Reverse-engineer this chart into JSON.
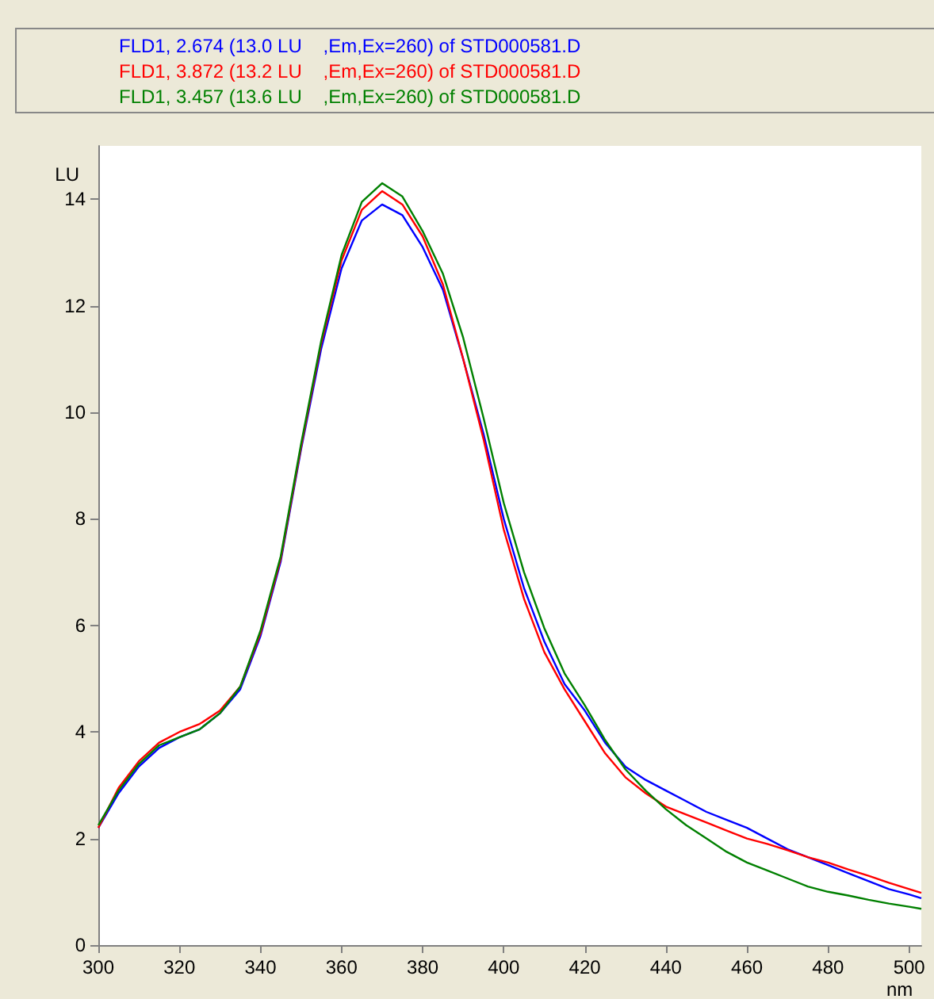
{
  "chart_data": {
    "type": "line",
    "xlabel": "nm",
    "ylabel": "LU",
    "x": [
      300,
      305,
      310,
      315,
      320,
      325,
      330,
      335,
      340,
      345,
      350,
      355,
      360,
      365,
      370,
      375,
      380,
      385,
      390,
      395,
      400,
      405,
      410,
      415,
      420,
      425,
      430,
      435,
      440,
      445,
      450,
      455,
      460,
      465,
      470,
      475,
      480,
      485,
      490,
      495,
      500,
      503
    ],
    "series": [
      {
        "name": "FLD1, 2.674 (13.0 LU    ,Em,Ex=260) of STD000581.D",
        "color": "#0000ff",
        "values": [
          2.2,
          2.85,
          3.35,
          3.7,
          3.9,
          4.05,
          4.35,
          4.8,
          5.8,
          7.2,
          9.3,
          11.2,
          12.7,
          13.6,
          13.9,
          13.7,
          13.1,
          12.3,
          11.0,
          9.6,
          8.0,
          6.7,
          5.7,
          4.9,
          4.4,
          3.8,
          3.35,
          3.1,
          2.9,
          2.7,
          2.5,
          2.35,
          2.2,
          2.0,
          1.8,
          1.65,
          1.5,
          1.35,
          1.2,
          1.05,
          0.95,
          0.88
        ]
      },
      {
        "name": "FLD1, 3.872 (13.2 LU    ,Em,Ex=260) of STD000581.D",
        "color": "#ff0000",
        "values": [
          2.2,
          2.95,
          3.45,
          3.8,
          4.0,
          4.15,
          4.4,
          4.85,
          5.85,
          7.25,
          9.35,
          11.3,
          12.85,
          13.8,
          14.15,
          13.9,
          13.3,
          12.4,
          11.0,
          9.5,
          7.8,
          6.5,
          5.5,
          4.8,
          4.2,
          3.6,
          3.15,
          2.85,
          2.6,
          2.45,
          2.3,
          2.15,
          2.0,
          1.9,
          1.78,
          1.65,
          1.55,
          1.42,
          1.3,
          1.17,
          1.05,
          0.98
        ]
      },
      {
        "name": "FLD1, 3.457 (13.6 LU    ,Em,Ex=260) of STD000581.D",
        "color": "#008000",
        "values": [
          2.25,
          2.9,
          3.4,
          3.75,
          3.9,
          4.05,
          4.35,
          4.85,
          5.9,
          7.3,
          9.4,
          11.35,
          12.95,
          13.95,
          14.3,
          14.05,
          13.4,
          12.6,
          11.4,
          9.9,
          8.3,
          7.0,
          5.95,
          5.1,
          4.5,
          3.85,
          3.3,
          2.9,
          2.55,
          2.25,
          2.0,
          1.75,
          1.55,
          1.4,
          1.25,
          1.1,
          1.0,
          0.93,
          0.85,
          0.78,
          0.72,
          0.68
        ]
      }
    ],
    "xlim": [
      300,
      503
    ],
    "xticks": [
      300,
      320,
      340,
      360,
      380,
      400,
      420,
      440,
      460,
      480,
      500
    ],
    "ylim": [
      0,
      15
    ],
    "yticks": [
      0,
      2,
      4,
      6,
      8,
      10,
      12,
      14
    ],
    "legend": "top left",
    "marker": "none",
    "line_style": "solid",
    "grid": false
  }
}
